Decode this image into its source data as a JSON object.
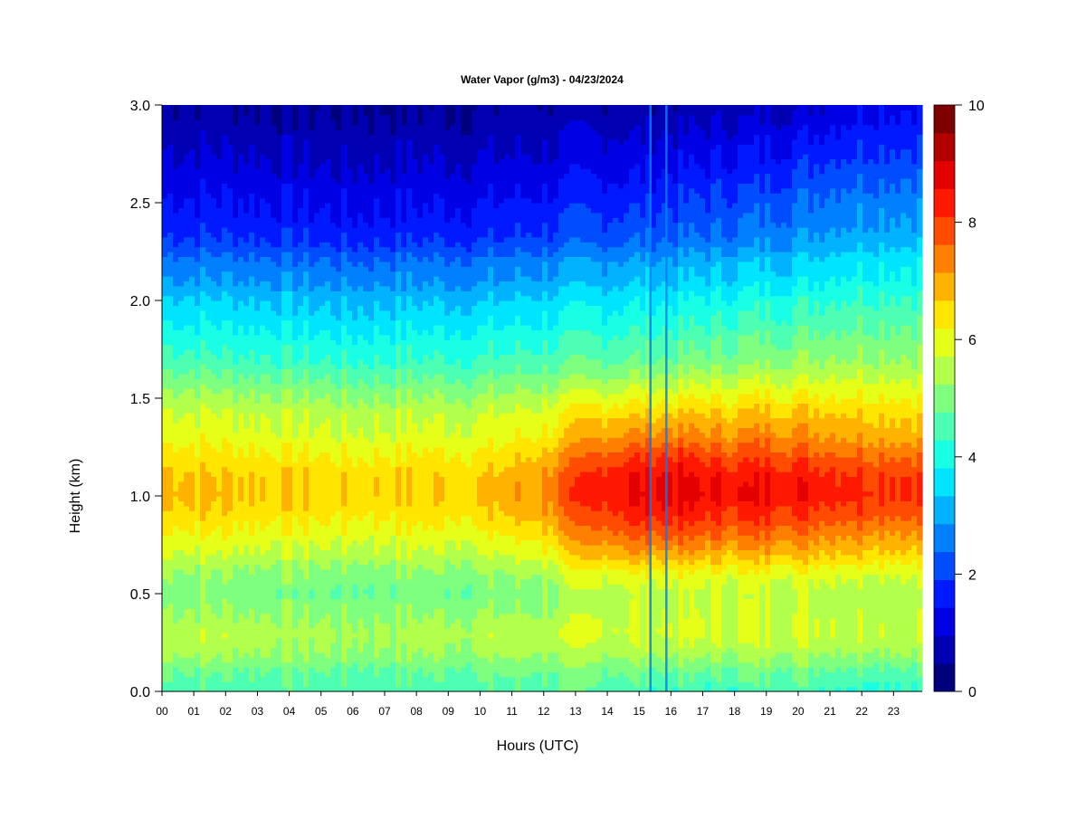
{
  "chart_data": {
    "type": "heatmap",
    "title": "Water Vapor (g/m3) - 04/23/2024",
    "xlabel": "Hours (UTC)",
    "ylabel": "Height (km)",
    "x_tick_labels": [
      "00",
      "01",
      "02",
      "03",
      "04",
      "05",
      "06",
      "07",
      "08",
      "09",
      "10",
      "11",
      "12",
      "13",
      "14",
      "15",
      "16",
      "17",
      "18",
      "19",
      "20",
      "21",
      "22",
      "23"
    ],
    "xlim": [
      0,
      23.9
    ],
    "y_ticks": [
      0.0,
      0.5,
      1.0,
      1.5,
      2.0,
      2.5,
      3.0
    ],
    "y_tick_labels": [
      "0.0",
      "0.5",
      "1.0",
      "1.5",
      "2.0",
      "2.5",
      "3.0"
    ],
    "ylim": [
      0,
      3.0
    ],
    "colorbar": {
      "min": 0,
      "max": 10,
      "ticks": [
        0,
        2,
        4,
        6,
        8,
        10
      ],
      "tick_labels": [
        "0",
        "2",
        "4",
        "6",
        "8",
        "10"
      ],
      "colors": [
        "#00007f",
        "#0000b2",
        "#0000e5",
        "#0019ff",
        "#004cff",
        "#007fff",
        "#00b2ff",
        "#00e5ff",
        "#19ffe5",
        "#4cffb2",
        "#7fff7f",
        "#b2ff4c",
        "#e5ff19",
        "#ffe500",
        "#ffb200",
        "#ff7f00",
        "#ff4c00",
        "#ff1900",
        "#e50000",
        "#b20000",
        "#7f0000"
      ]
    },
    "heights_km": [
      0.0,
      0.1,
      0.2,
      0.3,
      0.4,
      0.5,
      0.6,
      0.7,
      0.8,
      0.9,
      1.0,
      1.1,
      1.2,
      1.3,
      1.4,
      1.5,
      1.6,
      1.7,
      1.8,
      1.9,
      2.0,
      2.1,
      2.2,
      2.3,
      2.4,
      2.5,
      2.6,
      2.7,
      2.8,
      2.9,
      3.0
    ],
    "hours_utc": [
      0,
      2,
      4,
      6,
      8,
      10,
      12,
      13,
      14,
      15,
      16,
      17,
      18,
      19,
      20,
      21,
      22,
      24
    ],
    "profiles_g_m3": [
      [
        4.6,
        4.9,
        5.5,
        5.6,
        5.3,
        5.1,
        5.3,
        5.8,
        6.2,
        6.6,
        6.9,
        6.8,
        6.5,
        6.1,
        5.9,
        5.5,
        5.0,
        4.5,
        4.2,
        3.8,
        3.5,
        2.9,
        2.6,
        2.0,
        1.7,
        1.5,
        1.3,
        1.1,
        0.9,
        0.7,
        0.6
      ],
      [
        4.5,
        4.8,
        5.4,
        5.6,
        5.3,
        5.0,
        5.2,
        5.7,
        6.1,
        6.5,
        6.8,
        6.7,
        6.4,
        6.0,
        5.8,
        5.4,
        4.9,
        4.4,
        4.1,
        3.7,
        3.4,
        2.9,
        2.6,
        2.0,
        1.7,
        1.5,
        1.3,
        1.1,
        0.9,
        0.7,
        0.6
      ],
      [
        4.5,
        4.8,
        5.3,
        5.5,
        5.2,
        4.9,
        5.1,
        5.6,
        6.0,
        6.4,
        6.6,
        6.6,
        6.3,
        5.9,
        5.7,
        5.3,
        4.8,
        4.3,
        4.0,
        3.6,
        3.3,
        2.8,
        2.5,
        1.9,
        1.6,
        1.4,
        1.2,
        1.0,
        0.8,
        0.6,
        0.5
      ],
      [
        4.4,
        4.7,
        5.2,
        5.4,
        5.1,
        4.8,
        5.0,
        5.5,
        5.9,
        6.3,
        6.5,
        6.5,
        6.2,
        5.8,
        5.6,
        5.2,
        4.7,
        4.2,
        3.9,
        3.5,
        3.2,
        2.7,
        2.4,
        1.8,
        1.5,
        1.3,
        1.1,
        0.9,
        0.7,
        0.6,
        0.5
      ],
      [
        4.5,
        4.8,
        5.3,
        5.5,
        5.2,
        4.9,
        5.1,
        5.6,
        6.0,
        6.4,
        6.6,
        6.6,
        6.3,
        5.9,
        5.7,
        5.3,
        4.8,
        4.3,
        4.0,
        3.6,
        3.3,
        2.8,
        2.5,
        1.9,
        1.6,
        1.4,
        1.2,
        1.0,
        0.8,
        0.6,
        0.5
      ],
      [
        4.5,
        4.8,
        5.3,
        5.5,
        5.2,
        4.9,
        5.1,
        5.6,
        6.0,
        6.4,
        6.7,
        6.6,
        6.3,
        5.9,
        5.7,
        5.3,
        4.8,
        4.3,
        4.0,
        3.6,
        3.3,
        2.8,
        2.5,
        1.9,
        1.6,
        1.4,
        1.2,
        1.0,
        0.8,
        0.6,
        0.5
      ],
      [
        4.6,
        4.9,
        5.4,
        5.6,
        5.3,
        5.1,
        5.4,
        6.0,
        6.5,
        7.0,
        7.3,
        7.2,
        6.8,
        6.3,
        6.0,
        5.6,
        5.0,
        4.5,
        4.2,
        3.8,
        3.5,
        3.0,
        2.7,
        2.1,
        1.8,
        1.6,
        1.3,
        1.1,
        0.9,
        0.7,
        0.6
      ],
      [
        4.6,
        4.9,
        5.4,
        5.7,
        5.5,
        5.4,
        5.8,
        6.5,
        7.1,
        7.6,
        8.0,
        7.9,
        7.4,
        6.8,
        6.4,
        5.8,
        5.1,
        4.6,
        4.3,
        3.9,
        3.6,
        3.1,
        2.8,
        2.2,
        1.9,
        1.7,
        1.4,
        1.2,
        1.0,
        0.8,
        0.6
      ],
      [
        4.6,
        4.9,
        5.5,
        5.8,
        5.7,
        5.6,
        6.0,
        6.9,
        7.6,
        8.1,
        8.5,
        8.4,
        7.9,
        7.2,
        6.7,
        6.0,
        5.3,
        4.7,
        4.4,
        4.0,
        3.7,
        3.2,
        2.9,
        2.3,
        2.0,
        1.8,
        1.5,
        1.3,
        1.1,
        0.8,
        0.6
      ],
      [
        4.5,
        4.9,
        5.5,
        5.8,
        5.7,
        5.6,
        6.1,
        7.0,
        7.7,
        8.3,
        8.7,
        8.6,
        8.1,
        7.4,
        6.8,
        6.1,
        5.4,
        4.8,
        4.5,
        4.1,
        3.8,
        3.3,
        3.0,
        2.4,
        2.1,
        1.8,
        1.5,
        1.3,
        1.1,
        0.8,
        0.6
      ],
      [
        4.4,
        4.8,
        5.4,
        5.8,
        5.7,
        5.6,
        6.1,
        7.0,
        7.8,
        8.4,
        8.8,
        8.7,
        8.2,
        7.4,
        6.8,
        6.1,
        5.4,
        4.8,
        4.5,
        4.1,
        3.8,
        3.3,
        3.0,
        2.4,
        2.1,
        1.9,
        1.6,
        1.3,
        1.1,
        0.8,
        0.6
      ],
      [
        4.3,
        4.7,
        5.4,
        5.8,
        5.7,
        5.6,
        6.0,
        6.9,
        7.6,
        8.2,
        8.6,
        8.5,
        8.0,
        7.3,
        6.8,
        6.2,
        5.5,
        4.9,
        4.6,
        4.2,
        3.9,
        3.4,
        3.1,
        2.5,
        2.2,
        2.0,
        1.7,
        1.4,
        1.2,
        0.9,
        0.7
      ],
      [
        4.4,
        4.8,
        5.4,
        5.8,
        5.7,
        5.6,
        6.0,
        6.8,
        7.5,
        8.1,
        8.5,
        8.4,
        7.9,
        7.3,
        6.8,
        6.2,
        5.6,
        5.0,
        4.7,
        4.3,
        4.0,
        3.5,
        3.2,
        2.6,
        2.3,
        2.1,
        1.8,
        1.5,
        1.3,
        1.0,
        0.7
      ],
      [
        4.5,
        4.9,
        5.5,
        5.8,
        5.7,
        5.6,
        6.0,
        6.9,
        7.6,
        8.2,
        8.6,
        8.5,
        8.0,
        7.4,
        6.9,
        6.3,
        5.7,
        5.1,
        4.8,
        4.4,
        4.1,
        3.6,
        3.3,
        2.8,
        2.5,
        2.2,
        1.9,
        1.6,
        1.4,
        1.1,
        0.8
      ],
      [
        4.5,
        4.9,
        5.5,
        5.8,
        5.7,
        5.6,
        6.0,
        6.8,
        7.5,
        8.1,
        8.5,
        8.4,
        7.9,
        7.3,
        6.9,
        6.3,
        5.7,
        5.2,
        4.9,
        4.5,
        4.2,
        3.7,
        3.4,
        2.9,
        2.6,
        2.4,
        2.1,
        1.8,
        1.5,
        1.2,
        0.9
      ],
      [
        4.4,
        4.8,
        5.4,
        5.8,
        5.7,
        5.6,
        6.0,
        6.8,
        7.4,
        8.0,
        8.4,
        8.3,
        7.8,
        7.2,
        6.9,
        6.3,
        5.8,
        5.3,
        5.0,
        4.6,
        4.3,
        3.9,
        3.6,
        3.1,
        2.8,
        2.6,
        2.3,
        2.0,
        1.7,
        1.4,
        1.1
      ],
      [
        4.3,
        4.7,
        5.4,
        5.7,
        5.6,
        5.5,
        5.9,
        6.7,
        7.3,
        7.9,
        8.3,
        8.2,
        7.7,
        7.1,
        6.8,
        6.3,
        5.8,
        5.3,
        5.0,
        4.7,
        4.4,
        4.0,
        3.7,
        3.2,
        2.9,
        2.7,
        2.4,
        2.1,
        1.8,
        1.6,
        1.3
      ],
      [
        4.3,
        4.7,
        5.4,
        5.7,
        5.6,
        5.5,
        5.9,
        6.6,
        7.2,
        7.8,
        8.2,
        8.1,
        7.6,
        7.0,
        6.7,
        6.2,
        5.7,
        5.3,
        5.0,
        4.7,
        4.4,
        4.0,
        3.8,
        3.3,
        3.0,
        2.8,
        2.5,
        2.2,
        1.9,
        1.7,
        1.4
      ]
    ],
    "dry_column_hours_utc": [
      15.35,
      15.85
    ],
    "grid": false,
    "legend": "colorbar right"
  }
}
